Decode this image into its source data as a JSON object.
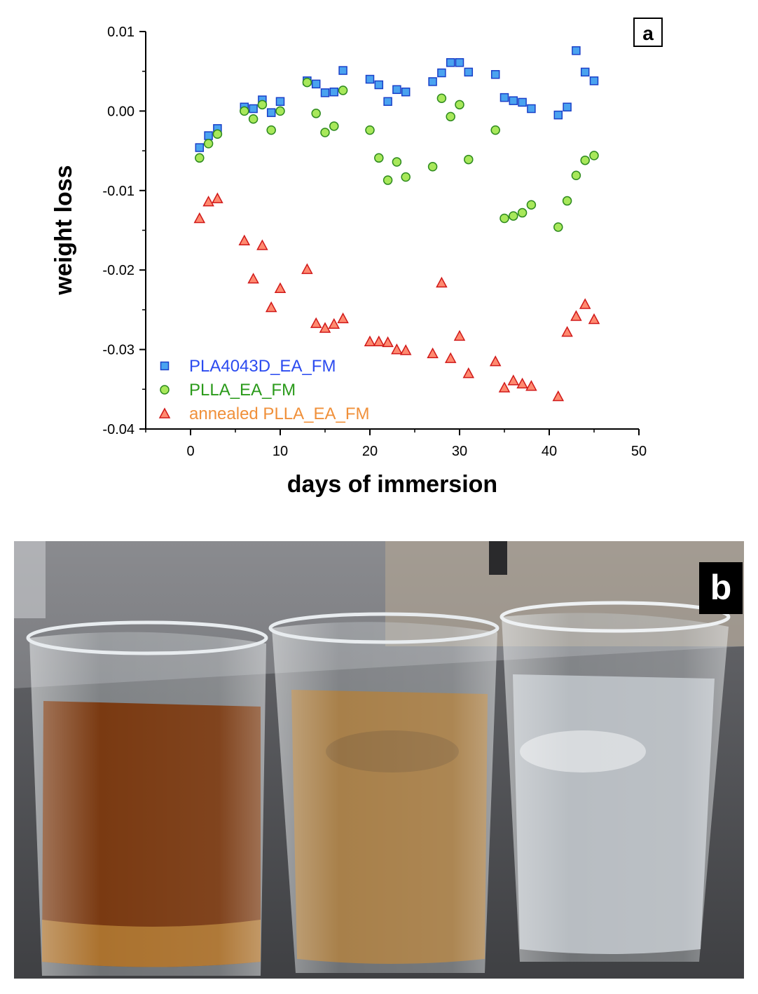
{
  "chart_data": {
    "type": "scatter",
    "panel_label": "a",
    "xlabel": "days of immersion",
    "ylabel": "weight loss",
    "xlim": [
      -5,
      50
    ],
    "ylim": [
      -0.04,
      0.01
    ],
    "x_ticks": [
      0,
      10,
      20,
      30,
      40,
      50
    ],
    "x_tick_labels": [
      "0",
      "10",
      "20",
      "30",
      "40",
      "50"
    ],
    "y_ticks": [
      -0.04,
      -0.03,
      -0.02,
      -0.01,
      0.0,
      0.01
    ],
    "y_tick_labels": [
      "-0.04",
      "-0.03",
      "-0.02",
      "-0.01",
      "0.00",
      "0.01"
    ],
    "legend_position": "bottom-left",
    "series": [
      {
        "name": "PLA4043D_EA_FM",
        "marker": "square",
        "fill": "#4aa3f0",
        "stroke": "#1a3fc8",
        "label_color": "#2b4bf0",
        "x": [
          1,
          2,
          3,
          6,
          7,
          8,
          9,
          10,
          13,
          14,
          15,
          16,
          17,
          20,
          21,
          22,
          23,
          24,
          27,
          28,
          29,
          30,
          31,
          34,
          35,
          36,
          37,
          38,
          41,
          42,
          43,
          44,
          45
        ],
        "y": [
          -0.0046,
          -0.0031,
          -0.0022,
          0.0005,
          0.0003,
          0.0014,
          -0.0002,
          0.0012,
          0.0038,
          0.0034,
          0.0023,
          0.0024,
          0.0051,
          0.004,
          0.0033,
          0.0012,
          0.0027,
          0.0024,
          0.0037,
          0.0048,
          0.0061,
          0.0061,
          0.0049,
          0.0046,
          0.0017,
          0.0013,
          0.0011,
          0.0003,
          -0.0005,
          0.0005,
          0.0076,
          0.0049,
          0.0038
        ]
      },
      {
        "name": "PLLA_EA_FM",
        "marker": "circle",
        "fill": "#a8e85a",
        "stroke": "#2e8a1e",
        "label_color": "#2a9a1a",
        "x": [
          1,
          2,
          3,
          6,
          7,
          8,
          9,
          10,
          13,
          14,
          15,
          16,
          17,
          20,
          21,
          22,
          23,
          24,
          27,
          28,
          29,
          30,
          31,
          34,
          35,
          36,
          37,
          38,
          41,
          42,
          43,
          44,
          45
        ],
        "y": [
          -0.0059,
          -0.0041,
          -0.0029,
          0.0,
          -0.001,
          0.0008,
          -0.0024,
          0.0,
          0.0036,
          -0.0003,
          -0.0027,
          -0.0019,
          0.0026,
          -0.0024,
          -0.0059,
          -0.0087,
          -0.0064,
          -0.0083,
          -0.007,
          0.0016,
          -0.0007,
          0.0008,
          -0.0061,
          -0.0024,
          -0.0135,
          -0.0132,
          -0.0128,
          -0.0118,
          -0.0146,
          -0.0113,
          -0.0081,
          -0.0062,
          -0.0056
        ]
      },
      {
        "name": "annealed PLLA_EA_FM",
        "marker": "triangle",
        "fill": "#ff8a70",
        "stroke": "#d01818",
        "label_color": "#f0903a",
        "x": [
          1,
          2,
          3,
          6,
          7,
          8,
          9,
          10,
          13,
          14,
          15,
          16,
          17,
          20,
          21,
          22,
          23,
          24,
          27,
          28,
          29,
          30,
          31,
          34,
          35,
          36,
          37,
          38,
          41,
          42,
          43,
          44,
          45
        ],
        "y": [
          -0.0135,
          -0.0114,
          -0.011,
          -0.0163,
          -0.0211,
          -0.0169,
          -0.0247,
          -0.0223,
          -0.0199,
          -0.0267,
          -0.0273,
          -0.0268,
          -0.0261,
          -0.029,
          -0.029,
          -0.0291,
          -0.03,
          -0.0301,
          -0.0305,
          -0.0216,
          -0.0311,
          -0.0283,
          -0.033,
          -0.0315,
          -0.0348,
          -0.0339,
          -0.0343,
          -0.0346,
          -0.0359,
          -0.0278,
          -0.0258,
          -0.0243,
          -0.0262
        ]
      }
    ]
  },
  "photo": {
    "panel_label": "b",
    "beakers": [
      {
        "liquid": "#7a3a12"
      },
      {
        "liquid": "#a8804a"
      },
      {
        "liquid": "#b8bdc2"
      }
    ]
  }
}
